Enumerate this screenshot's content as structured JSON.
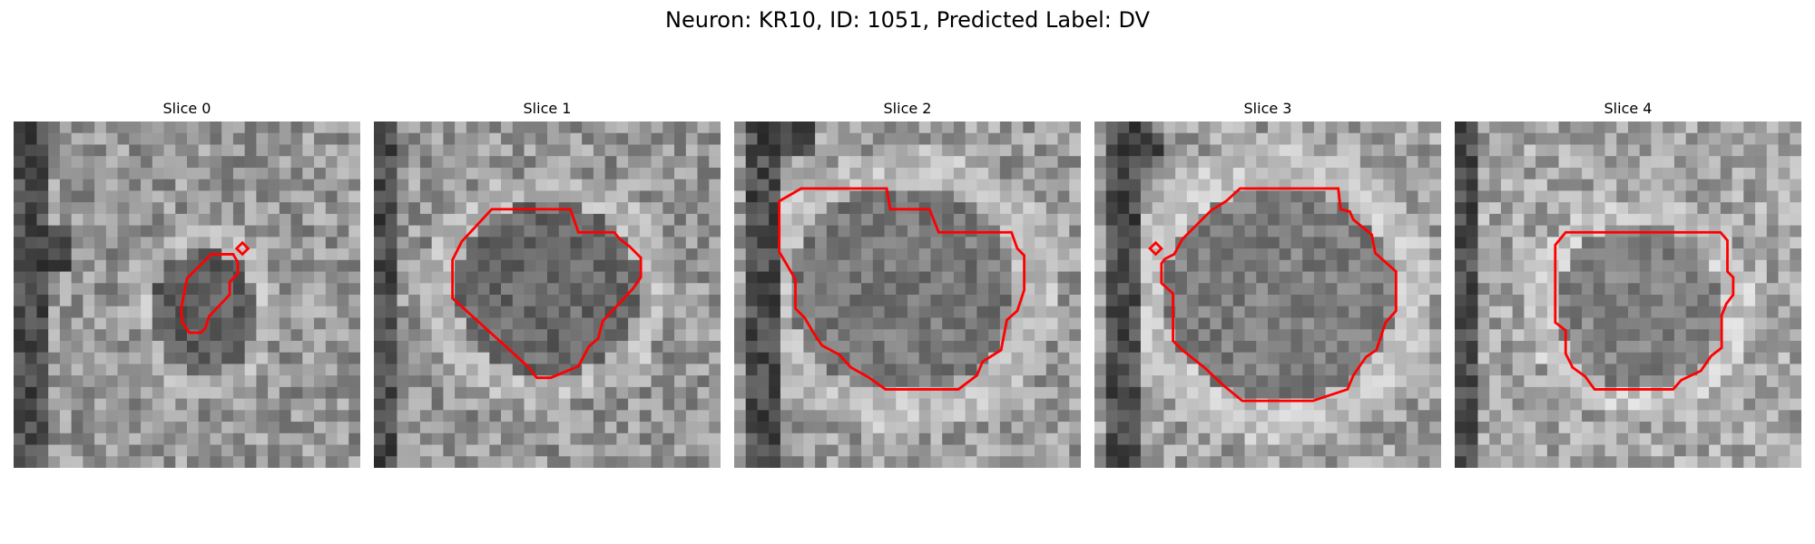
{
  "figure": {
    "title": "Neuron: KR10, ID: 1051, Predicted Label: DV"
  },
  "colors": {
    "contour": "#ff0000",
    "background": "#ffffff"
  },
  "panels": [
    {
      "title": "Slice 0",
      "contour_color": "#ff0000"
    },
    {
      "title": "Slice 1",
      "contour_color": "#ff0000"
    },
    {
      "title": "Slice 2",
      "contour_color": "#ff0000"
    },
    {
      "title": "Slice 3",
      "contour_color": "#ff0000"
    },
    {
      "title": "Slice 4",
      "contour_color": "#ff0000"
    }
  ]
}
